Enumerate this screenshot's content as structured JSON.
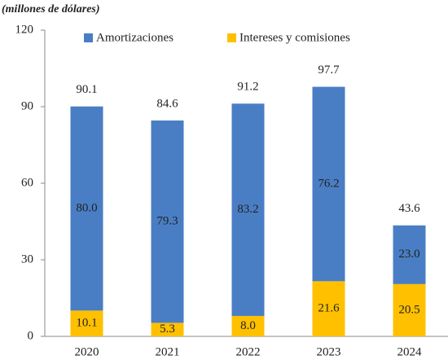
{
  "chart_data": {
    "type": "stacked_bar",
    "subtitle": "(millones de dólares)",
    "categories": [
      "2020",
      "2021",
      "2022",
      "2023",
      "2024"
    ],
    "series": [
      {
        "name": "Amortizaciones",
        "color": "#4a7ec4",
        "values": [
          80.0,
          79.3,
          83.2,
          76.2,
          23.0
        ],
        "value_labels": [
          "80.0",
          "79.3",
          "83.2",
          "76.2",
          "23.0"
        ]
      },
      {
        "name": "Intereses y comisiones",
        "color": "#ffc000",
        "values": [
          10.1,
          5.3,
          8.0,
          21.6,
          20.5
        ],
        "value_labels": [
          "10.1",
          "5.3",
          "8.0",
          "21.6",
          "20.5"
        ]
      }
    ],
    "totals": [
      90.1,
      84.6,
      91.2,
      97.7,
      43.6
    ],
    "stack_order": "last_at_bottom",
    "legend": "top",
    "ylim": [
      0,
      120
    ],
    "yticks": [
      0,
      30,
      60,
      90,
      120
    ],
    "grid": false
  }
}
